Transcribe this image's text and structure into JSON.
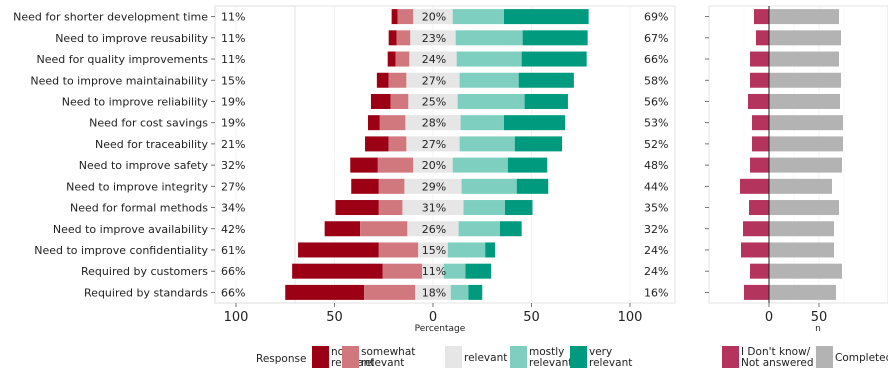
{
  "chart_data": [
    {
      "type": "bar",
      "subtype": "diverging-stacked-likert",
      "xlabel": "Percentage",
      "xlim": [
        -100,
        100
      ],
      "x_ticks": [
        -100,
        -50,
        0,
        50,
        100
      ],
      "x_tick_labels": [
        "100",
        "50",
        "0",
        "50",
        "100"
      ],
      "legend_position": "bottom",
      "legend_title": "Response",
      "series_names": [
        "not relevant",
        "somewhat relevant",
        "relevant",
        "mostly relevant",
        "very relevant"
      ],
      "colors": [
        "#9b0015",
        "#d0787e",
        "#e6e6e6",
        "#7ecfc0",
        "#009a7e"
      ],
      "categories": [
        "Need for shorter development time",
        "Need to improve reusability",
        "Need for quality improvements",
        "Need to improve maintainability",
        "Need to improve reliability",
        "Need for cost savings",
        "Need for traceability",
        "Need to improve safety",
        "Need to improve integrity",
        "Need for formal methods",
        "Need to improve availability",
        "Need to improve confidentiality",
        "Required by customers",
        "Required by standards"
      ],
      "low_labels": [
        "11%",
        "11%",
        "11%",
        "15%",
        "19%",
        "19%",
        "21%",
        "32%",
        "27%",
        "34%",
        "42%",
        "61%",
        "66%",
        "66%"
      ],
      "mid_labels": [
        "20%",
        "23%",
        "24%",
        "27%",
        "25%",
        "28%",
        "27%",
        "20%",
        "29%",
        "31%",
        "26%",
        "15%",
        "11%",
        "18%"
      ],
      "high_labels": [
        "69%",
        "67%",
        "66%",
        "58%",
        "56%",
        "53%",
        "52%",
        "48%",
        "44%",
        "35%",
        "32%",
        "24%",
        "24%",
        "16%"
      ],
      "series": [
        {
          "name": "not relevant",
          "values": [
            3,
            4,
            4,
            6,
            10,
            6,
            12,
            14,
            14,
            22,
            18,
            41,
            46,
            40
          ]
        },
        {
          "name": "somewhat relevant",
          "values": [
            8,
            7,
            7,
            9,
            9,
            13,
            9,
            18,
            13,
            12,
            24,
            20,
            20,
            26
          ]
        },
        {
          "name": "relevant",
          "values": [
            20,
            23,
            24,
            27,
            25,
            28,
            27,
            20,
            29,
            31,
            26,
            15,
            11,
            18
          ]
        },
        {
          "name": "mostly relevant",
          "values": [
            26,
            34,
            33,
            30,
            34,
            22,
            28,
            28,
            28,
            21,
            21,
            19,
            11,
            9
          ]
        },
        {
          "name": "very relevant",
          "values": [
            43,
            33,
            33,
            28,
            22,
            31,
            24,
            20,
            16,
            14,
            11,
            5,
            13,
            7
          ]
        }
      ]
    },
    {
      "type": "bar",
      "subtype": "diverging-count",
      "xlabel": "n",
      "x_ticks": [
        0,
        50
      ],
      "x_tick_labels": [
        "0",
        "50"
      ],
      "legend_position": "bottom",
      "series_names": [
        "I Don't know/ Not answered",
        "Completed"
      ],
      "colors": [
        "#b5345e",
        "#b3b3b3"
      ],
      "series": [
        {
          "name": "I Don't know/ Not answered",
          "values": [
            15,
            13,
            19,
            19,
            21,
            17,
            17,
            19,
            29,
            20,
            26,
            28,
            19,
            25
          ]
        },
        {
          "name": "Completed",
          "values": [
            70,
            72,
            70,
            72,
            71,
            74,
            74,
            73,
            63,
            70,
            65,
            65,
            73,
            67
          ]
        }
      ]
    }
  ]
}
